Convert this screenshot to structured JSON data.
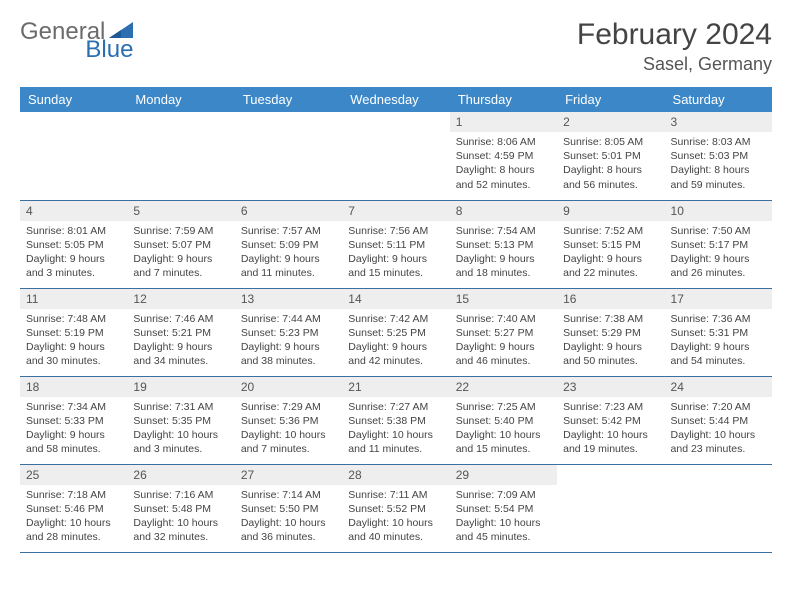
{
  "brand": {
    "part1": "General",
    "part2": "Blue"
  },
  "title": "February 2024",
  "location": "Sasel, Germany",
  "colors": {
    "header_bg": "#3b87c8",
    "header_text": "#ffffff",
    "daynum_bg": "#eeeeee",
    "row_border": "#3b6fa0",
    "brand_gray": "#6b6b6b",
    "brand_blue": "#2b6fb0"
  },
  "weekdays": [
    "Sunday",
    "Monday",
    "Tuesday",
    "Wednesday",
    "Thursday",
    "Friday",
    "Saturday"
  ],
  "leading_blanks": 4,
  "days": [
    {
      "n": "1",
      "sunrise": "Sunrise: 8:06 AM",
      "sunset": "Sunset: 4:59 PM",
      "daylight": "Daylight: 8 hours and 52 minutes."
    },
    {
      "n": "2",
      "sunrise": "Sunrise: 8:05 AM",
      "sunset": "Sunset: 5:01 PM",
      "daylight": "Daylight: 8 hours and 56 minutes."
    },
    {
      "n": "3",
      "sunrise": "Sunrise: 8:03 AM",
      "sunset": "Sunset: 5:03 PM",
      "daylight": "Daylight: 8 hours and 59 minutes."
    },
    {
      "n": "4",
      "sunrise": "Sunrise: 8:01 AM",
      "sunset": "Sunset: 5:05 PM",
      "daylight": "Daylight: 9 hours and 3 minutes."
    },
    {
      "n": "5",
      "sunrise": "Sunrise: 7:59 AM",
      "sunset": "Sunset: 5:07 PM",
      "daylight": "Daylight: 9 hours and 7 minutes."
    },
    {
      "n": "6",
      "sunrise": "Sunrise: 7:57 AM",
      "sunset": "Sunset: 5:09 PM",
      "daylight": "Daylight: 9 hours and 11 minutes."
    },
    {
      "n": "7",
      "sunrise": "Sunrise: 7:56 AM",
      "sunset": "Sunset: 5:11 PM",
      "daylight": "Daylight: 9 hours and 15 minutes."
    },
    {
      "n": "8",
      "sunrise": "Sunrise: 7:54 AM",
      "sunset": "Sunset: 5:13 PM",
      "daylight": "Daylight: 9 hours and 18 minutes."
    },
    {
      "n": "9",
      "sunrise": "Sunrise: 7:52 AM",
      "sunset": "Sunset: 5:15 PM",
      "daylight": "Daylight: 9 hours and 22 minutes."
    },
    {
      "n": "10",
      "sunrise": "Sunrise: 7:50 AM",
      "sunset": "Sunset: 5:17 PM",
      "daylight": "Daylight: 9 hours and 26 minutes."
    },
    {
      "n": "11",
      "sunrise": "Sunrise: 7:48 AM",
      "sunset": "Sunset: 5:19 PM",
      "daylight": "Daylight: 9 hours and 30 minutes."
    },
    {
      "n": "12",
      "sunrise": "Sunrise: 7:46 AM",
      "sunset": "Sunset: 5:21 PM",
      "daylight": "Daylight: 9 hours and 34 minutes."
    },
    {
      "n": "13",
      "sunrise": "Sunrise: 7:44 AM",
      "sunset": "Sunset: 5:23 PM",
      "daylight": "Daylight: 9 hours and 38 minutes."
    },
    {
      "n": "14",
      "sunrise": "Sunrise: 7:42 AM",
      "sunset": "Sunset: 5:25 PM",
      "daylight": "Daylight: 9 hours and 42 minutes."
    },
    {
      "n": "15",
      "sunrise": "Sunrise: 7:40 AM",
      "sunset": "Sunset: 5:27 PM",
      "daylight": "Daylight: 9 hours and 46 minutes."
    },
    {
      "n": "16",
      "sunrise": "Sunrise: 7:38 AM",
      "sunset": "Sunset: 5:29 PM",
      "daylight": "Daylight: 9 hours and 50 minutes."
    },
    {
      "n": "17",
      "sunrise": "Sunrise: 7:36 AM",
      "sunset": "Sunset: 5:31 PM",
      "daylight": "Daylight: 9 hours and 54 minutes."
    },
    {
      "n": "18",
      "sunrise": "Sunrise: 7:34 AM",
      "sunset": "Sunset: 5:33 PM",
      "daylight": "Daylight: 9 hours and 58 minutes."
    },
    {
      "n": "19",
      "sunrise": "Sunrise: 7:31 AM",
      "sunset": "Sunset: 5:35 PM",
      "daylight": "Daylight: 10 hours and 3 minutes."
    },
    {
      "n": "20",
      "sunrise": "Sunrise: 7:29 AM",
      "sunset": "Sunset: 5:36 PM",
      "daylight": "Daylight: 10 hours and 7 minutes."
    },
    {
      "n": "21",
      "sunrise": "Sunrise: 7:27 AM",
      "sunset": "Sunset: 5:38 PM",
      "daylight": "Daylight: 10 hours and 11 minutes."
    },
    {
      "n": "22",
      "sunrise": "Sunrise: 7:25 AM",
      "sunset": "Sunset: 5:40 PM",
      "daylight": "Daylight: 10 hours and 15 minutes."
    },
    {
      "n": "23",
      "sunrise": "Sunrise: 7:23 AM",
      "sunset": "Sunset: 5:42 PM",
      "daylight": "Daylight: 10 hours and 19 minutes."
    },
    {
      "n": "24",
      "sunrise": "Sunrise: 7:20 AM",
      "sunset": "Sunset: 5:44 PM",
      "daylight": "Daylight: 10 hours and 23 minutes."
    },
    {
      "n": "25",
      "sunrise": "Sunrise: 7:18 AM",
      "sunset": "Sunset: 5:46 PM",
      "daylight": "Daylight: 10 hours and 28 minutes."
    },
    {
      "n": "26",
      "sunrise": "Sunrise: 7:16 AM",
      "sunset": "Sunset: 5:48 PM",
      "daylight": "Daylight: 10 hours and 32 minutes."
    },
    {
      "n": "27",
      "sunrise": "Sunrise: 7:14 AM",
      "sunset": "Sunset: 5:50 PM",
      "daylight": "Daylight: 10 hours and 36 minutes."
    },
    {
      "n": "28",
      "sunrise": "Sunrise: 7:11 AM",
      "sunset": "Sunset: 5:52 PM",
      "daylight": "Daylight: 10 hours and 40 minutes."
    },
    {
      "n": "29",
      "sunrise": "Sunrise: 7:09 AM",
      "sunset": "Sunset: 5:54 PM",
      "daylight": "Daylight: 10 hours and 45 minutes."
    }
  ]
}
